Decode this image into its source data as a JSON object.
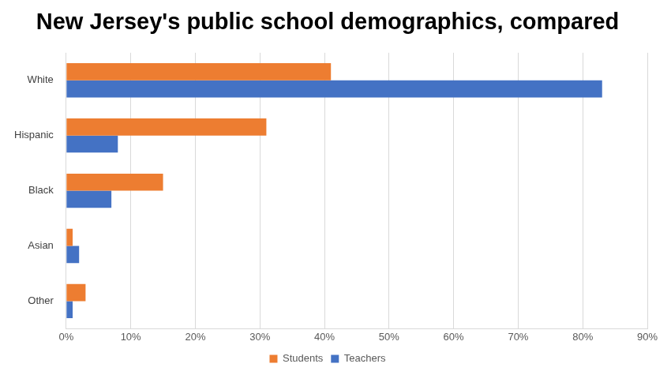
{
  "chart_data": {
    "type": "bar",
    "orientation": "horizontal",
    "title": "New Jersey's public school demographics, compared",
    "categories": [
      "White",
      "Hispanic",
      "Black",
      "Asian",
      "Other"
    ],
    "series": [
      {
        "name": "Students",
        "color": "#ed7d31",
        "values": [
          41,
          31,
          15,
          1,
          3
        ]
      },
      {
        "name": "Teachers",
        "color": "#4472c4",
        "values": [
          83,
          8,
          7,
          2,
          1
        ]
      }
    ],
    "xlim": [
      0,
      90
    ],
    "xticks": [
      {
        "value": 0,
        "label": "0%"
      },
      {
        "value": 10,
        "label": "10%"
      },
      {
        "value": 20,
        "label": "20%"
      },
      {
        "value": 30,
        "label": "30%"
      },
      {
        "value": 40,
        "label": "40%"
      },
      {
        "value": 50,
        "label": "50%"
      },
      {
        "value": 60,
        "label": "60%"
      },
      {
        "value": 70,
        "label": "70%"
      },
      {
        "value": 80,
        "label": "80%"
      },
      {
        "value": 90,
        "label": "90%"
      }
    ],
    "grid": true,
    "legend": "bottom"
  }
}
